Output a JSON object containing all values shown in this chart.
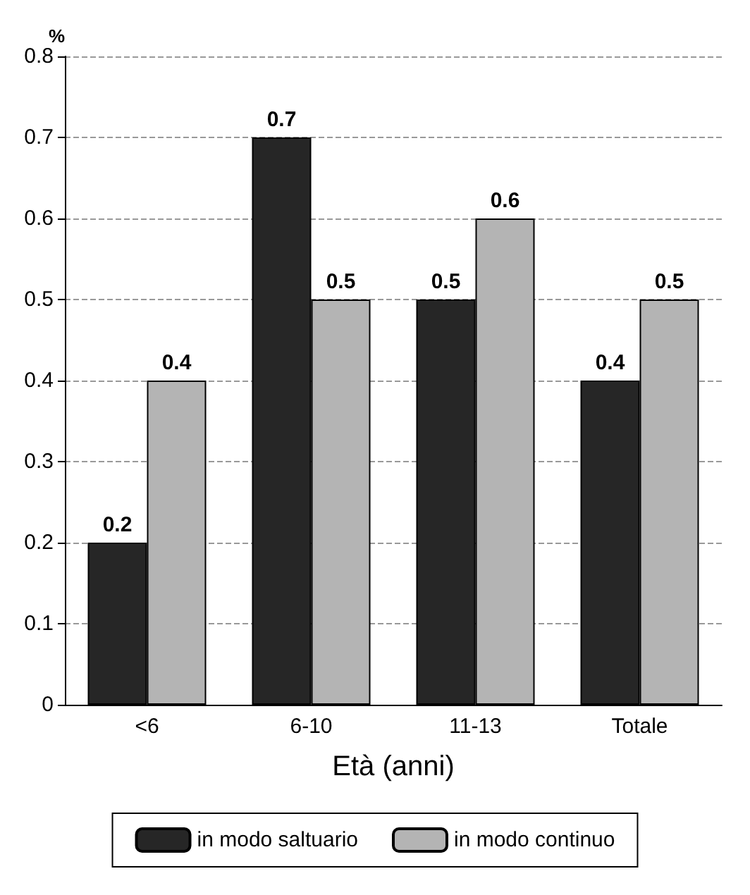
{
  "chart_data": {
    "type": "bar",
    "ylabel": "%",
    "xlabel": "Età (anni)",
    "categories": [
      "<6",
      "6-10",
      "11-13",
      "Totale"
    ],
    "series": [
      {
        "name": "in modo saltuario",
        "color": "#262626",
        "values": [
          0.2,
          0.7,
          0.5,
          0.4
        ]
      },
      {
        "name": "in modo continuo",
        "color": "#b4b4b4",
        "values": [
          0.4,
          0.5,
          0.6,
          0.5
        ]
      }
    ],
    "ylim": [
      0,
      0.8
    ],
    "yticks": [
      0,
      0.1,
      0.2,
      0.3,
      0.4,
      0.5,
      0.6,
      0.7,
      0.8
    ],
    "grid": "y",
    "legend": "bottom",
    "data_labels": true
  }
}
